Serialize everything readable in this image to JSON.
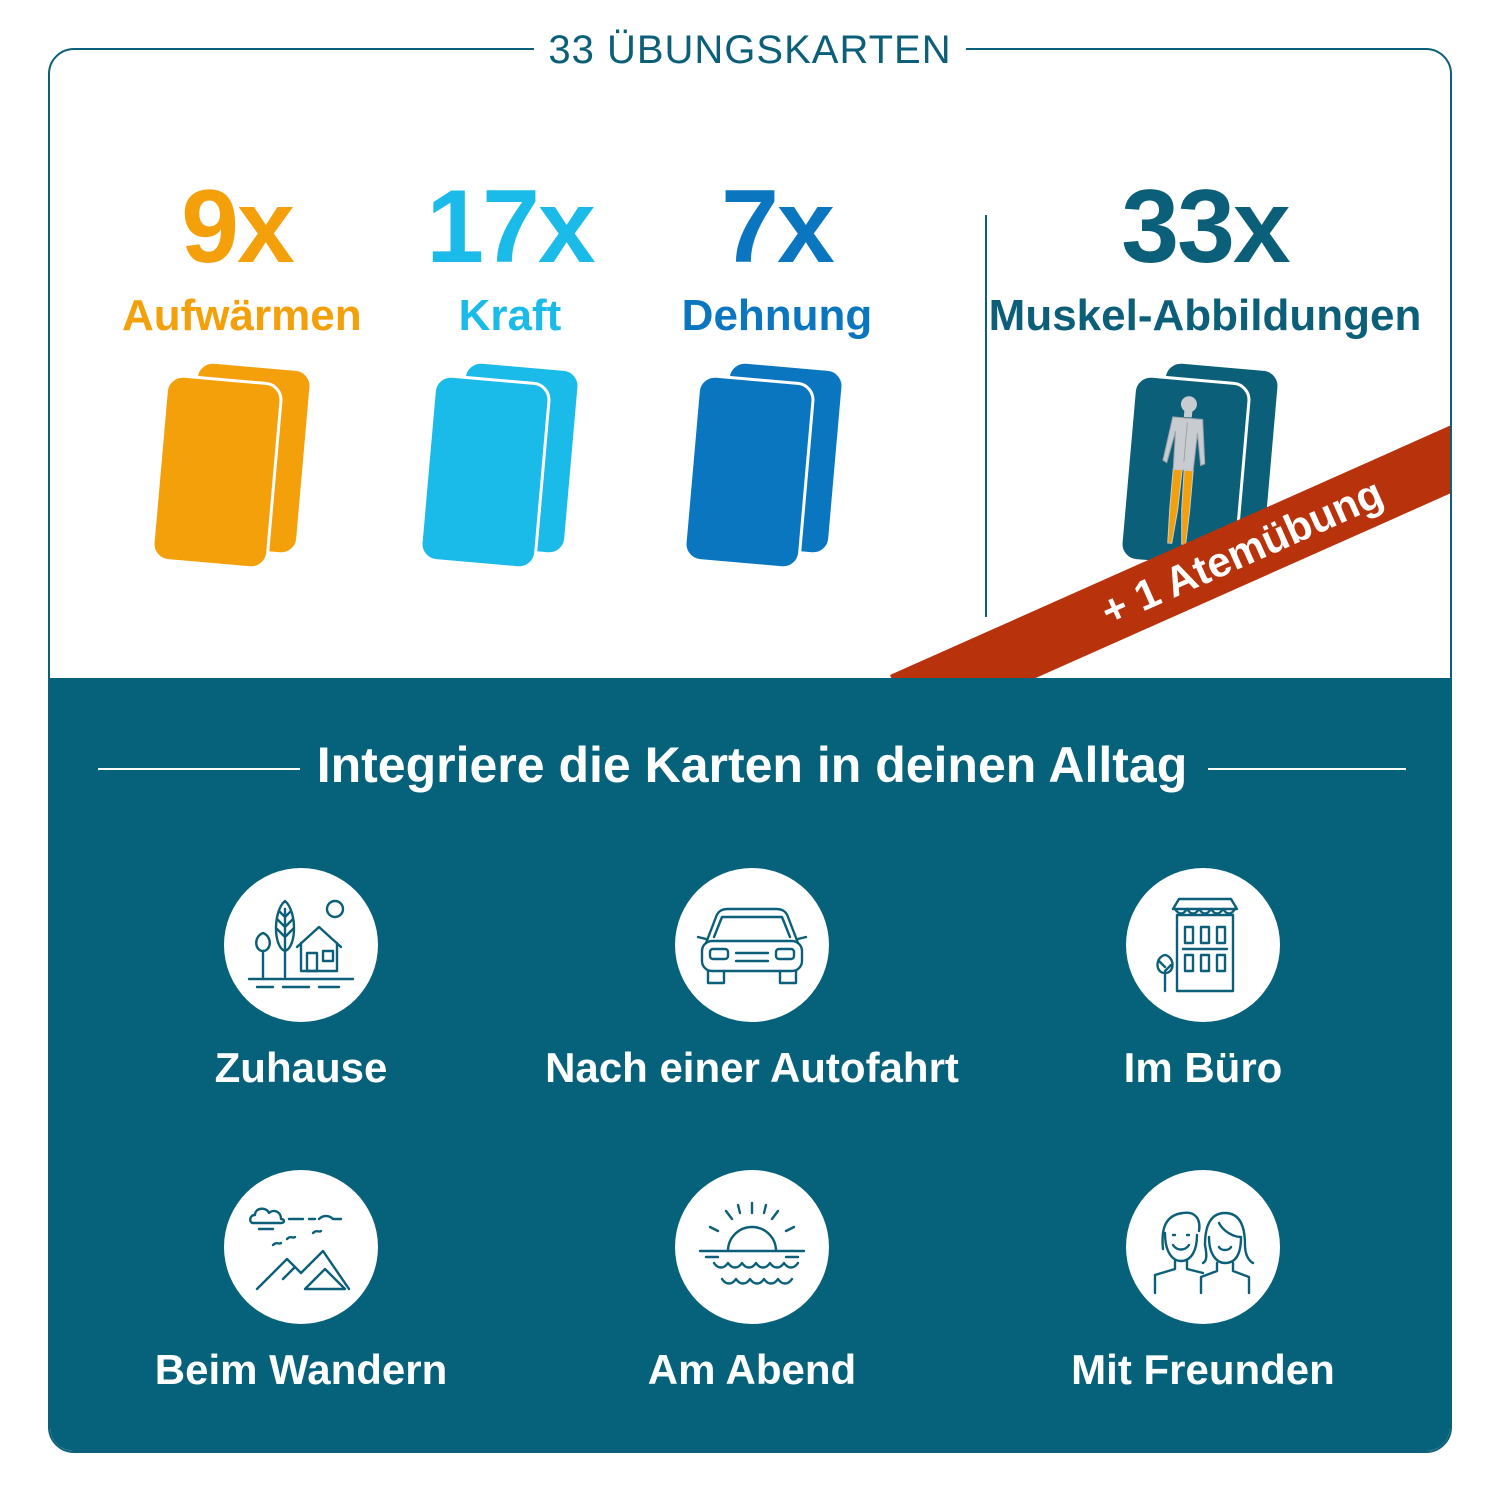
{
  "header": {
    "title": "33 ÜBUNGSKARTEN"
  },
  "stats": [
    {
      "number": "9x",
      "label": "Aufwärmen",
      "color": "#f4a00a"
    },
    {
      "number": "17x",
      "label": "Kraft",
      "color": "#1bbbe9"
    },
    {
      "number": "7x",
      "label": "Dehnung",
      "color": "#0a76c0"
    },
    {
      "number": "33x",
      "label": "Muskel-Abbildungen",
      "color": "#0b5f78"
    }
  ],
  "banner": {
    "text": "+ 1 Atemübung",
    "color": "#b8320c"
  },
  "section": {
    "title": "Integriere die Karten in deinen Alltag",
    "items": [
      {
        "label": "Zuhause",
        "icon": "house-landscape-icon"
      },
      {
        "label": "Nach einer Autofahrt",
        "icon": "car-icon"
      },
      {
        "label": "Im Büro",
        "icon": "office-building-icon"
      },
      {
        "label": "Beim Wandern",
        "icon": "mountains-icon"
      },
      {
        "label": "Am Abend",
        "icon": "sunset-icon"
      },
      {
        "label": "Mit Freunden",
        "icon": "friends-icon"
      }
    ]
  }
}
